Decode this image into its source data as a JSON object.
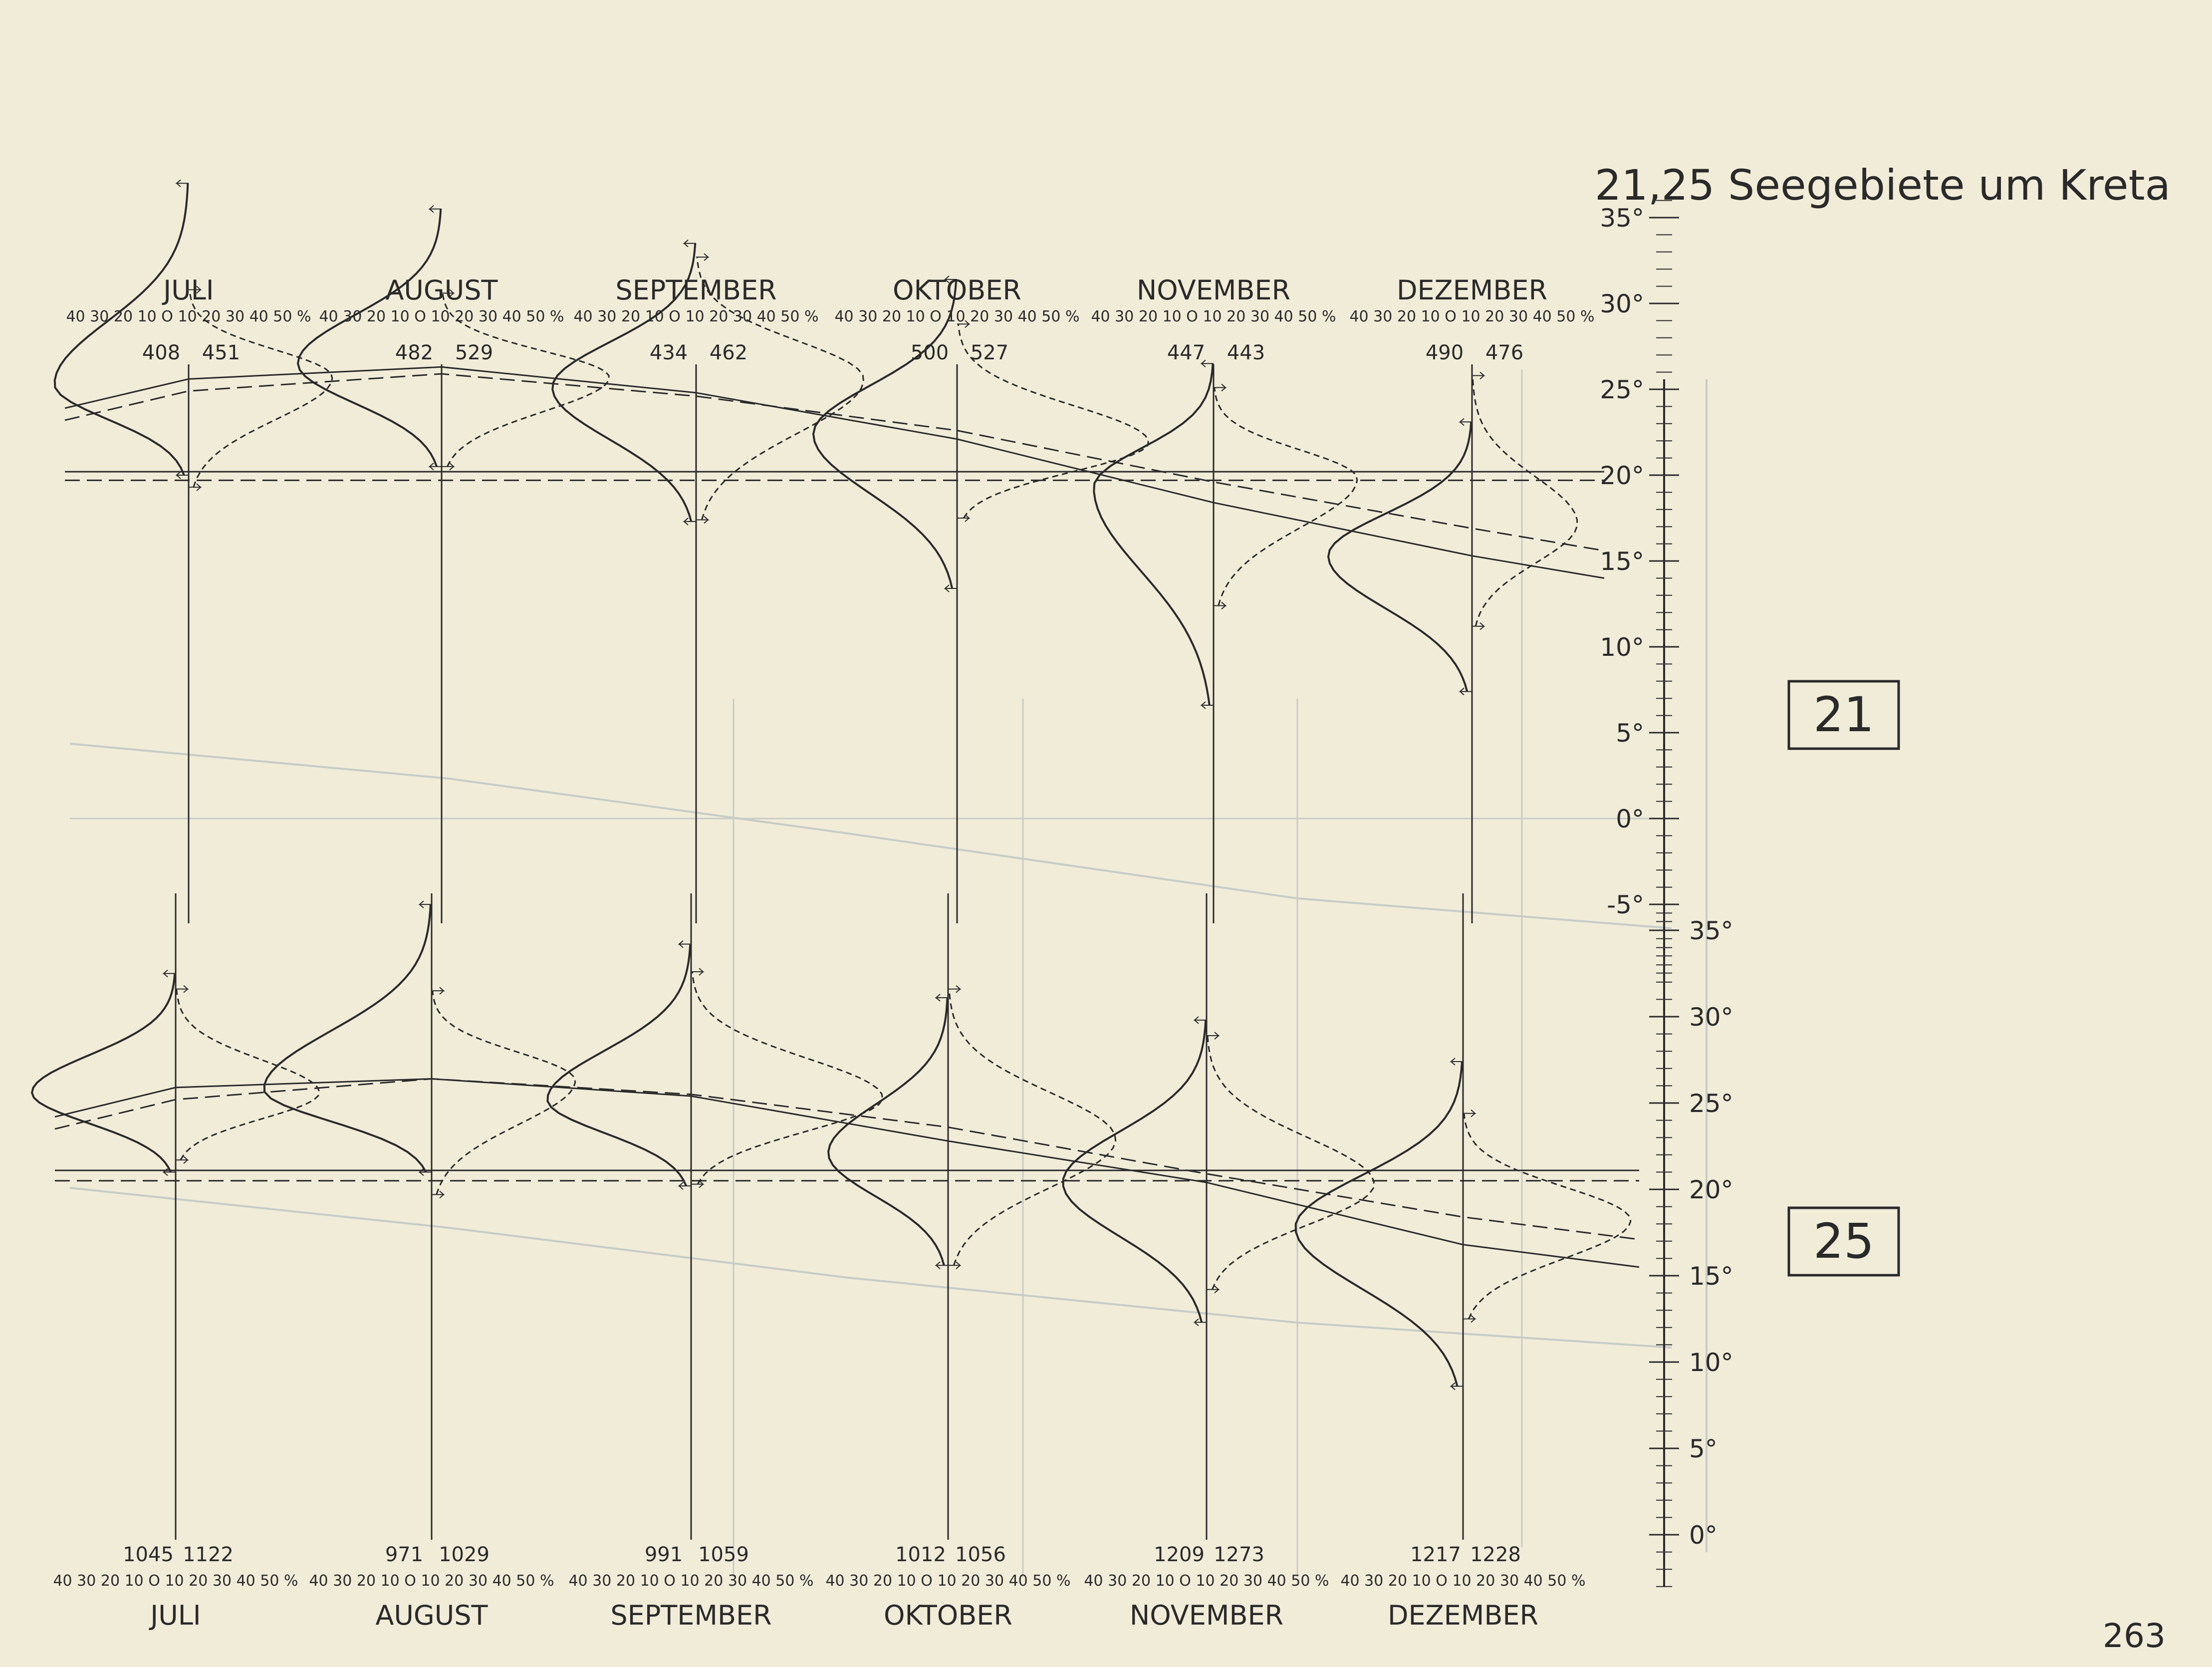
{
  "title": "21,25 Seegebiete um Kreta",
  "page_number": "263",
  "scale_ticks": "40 30 20 10 O 10 20 30 40 50 %",
  "colors": {
    "paper": "#f1ecd8",
    "ink": "#2a2a2a",
    "ghost": "#c7ccc6"
  },
  "chart_data": [
    {
      "type": "line",
      "area_label": "21",
      "ylabel": "°",
      "ylim": [
        -10,
        36
      ],
      "yticks": [
        "35°",
        "30°",
        "25°",
        "20°",
        "15°",
        "10°",
        "5°",
        "0°",
        "-5°"
      ],
      "categories": [
        "JULI",
        "AUGUST",
        "SEPTEMBER",
        "OKTOBER",
        "NOVEMBER",
        "DEZEMBER"
      ],
      "counts_left": [
        "408",
        "482",
        "434",
        "500",
        "447",
        "490"
      ],
      "counts_right": [
        "451",
        "529",
        "462",
        "527",
        "443",
        "476"
      ],
      "series": [
        {
          "style": "solid",
          "values": [
            25.6,
            26.3,
            24.8,
            22.1,
            18.4,
            15.3
          ]
        },
        {
          "style": "dashed",
          "values": [
            24.9,
            25.9,
            24.6,
            22.6,
            19.6,
            16.9
          ]
        }
      ],
      "reference_levels": [
        20.2,
        19.7
      ],
      "distributions": {
        "solid": [
          {
            "mode": 25.3,
            "peak_pct": 28,
            "low": 20,
            "high": 37
          },
          {
            "mode": 26.5,
            "peak_pct": 30,
            "low": 20.5,
            "high": 35.5
          },
          {
            "mode": 25.1,
            "peak_pct": 30,
            "low": 17.3,
            "high": 33.5
          },
          {
            "mode": 22.4,
            "peak_pct": 30,
            "low": 13.4,
            "high": 31.4
          },
          {
            "mode": 19.3,
            "peak_pct": 25,
            "low": 6.6,
            "high": 26.5
          },
          {
            "mode": 15.3,
            "peak_pct": 30,
            "low": 7.4,
            "high": 23.1
          }
        ],
        "dashed": [
          {
            "mode": 25.7,
            "peak_pct": 30,
            "low": 19.3,
            "high": 30.8
          },
          {
            "mode": 25.7,
            "peak_pct": 35,
            "low": 20.5,
            "high": 30.6
          },
          {
            "mode": 25.6,
            "peak_pct": 35,
            "low": 17.4,
            "high": 32.7
          },
          {
            "mode": 21.9,
            "peak_pct": 40,
            "low": 17.5,
            "high": 28.8
          },
          {
            "mode": 19.8,
            "peak_pct": 30,
            "low": 12.4,
            "high": 25.1
          },
          {
            "mode": 17.2,
            "peak_pct": 22,
            "low": 11.2,
            "high": 25.8
          }
        ]
      }
    },
    {
      "type": "line",
      "area_label": "25",
      "ylabel": "°",
      "ylim": [
        -3,
        36
      ],
      "yticks": [
        "35°",
        "30°",
        "25°",
        "20°",
        "15°",
        "10°",
        "5°",
        "0°"
      ],
      "categories": [
        "JULI",
        "AUGUST",
        "SEPTEMBER",
        "OKTOBER",
        "NOVEMBER",
        "DEZEMBER"
      ],
      "counts_left": [
        "1045",
        "971",
        "991",
        "1012",
        "1209",
        "1217"
      ],
      "counts_right": [
        "1122",
        "1029",
        "1059",
        "1056",
        "1273",
        "1228"
      ],
      "series": [
        {
          "style": "solid",
          "values": [
            25.9,
            26.4,
            25.4,
            22.8,
            20.4,
            16.8
          ]
        },
        {
          "style": "dashed",
          "values": [
            25.2,
            26.4,
            25.5,
            23.6,
            20.9,
            18.4
          ]
        }
      ],
      "reference_levels": [
        21.1,
        20.5
      ],
      "distributions": {
        "solid": [
          {
            "mode": 25.6,
            "peak_pct": 30,
            "low": 21,
            "high": 32.5
          },
          {
            "mode": 25.8,
            "peak_pct": 35,
            "low": 21,
            "high": 36.5
          },
          {
            "mode": 25.2,
            "peak_pct": 30,
            "low": 20.2,
            "high": 34.2
          },
          {
            "mode": 22.1,
            "peak_pct": 25,
            "low": 15.6,
            "high": 31.1
          },
          {
            "mode": 20.4,
            "peak_pct": 30,
            "low": 12.3,
            "high": 29.8
          },
          {
            "mode": 17.8,
            "peak_pct": 35,
            "low": 8.6,
            "high": 27.4
          }
        ],
        "dashed": [
          {
            "mode": 25.6,
            "peak_pct": 30,
            "low": 21.7,
            "high": 31.6
          },
          {
            "mode": 26.3,
            "peak_pct": 30,
            "low": 19.7,
            "high": 31.5
          },
          {
            "mode": 25.3,
            "peak_pct": 40,
            "low": 20.3,
            "high": 32.6
          },
          {
            "mode": 22.9,
            "peak_pct": 35,
            "low": 15.6,
            "high": 31.6
          },
          {
            "mode": 20.3,
            "peak_pct": 35,
            "low": 14.2,
            "high": 28.9
          },
          {
            "mode": 18.2,
            "peak_pct": 35,
            "low": 12.5,
            "high": 24.4
          }
        ]
      }
    }
  ]
}
